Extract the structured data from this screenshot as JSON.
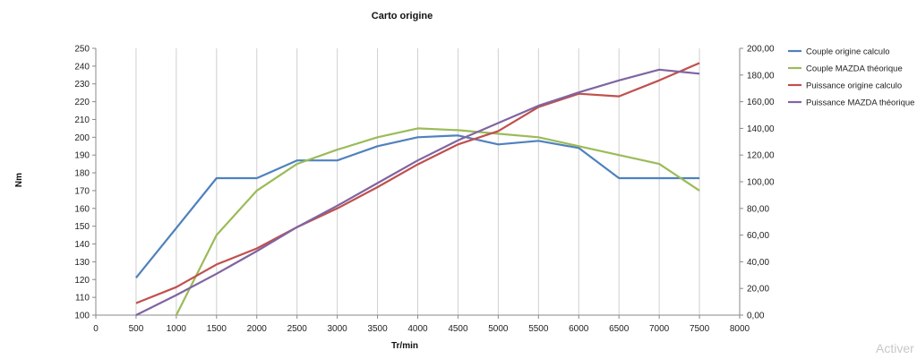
{
  "watermark": "Activer",
  "chart_data": {
    "type": "line",
    "title": "Carto origine",
    "xlabel": "Tr/min",
    "ylabel": "Nm",
    "xlim": [
      0,
      8000
    ],
    "xticks": [
      "0",
      "500",
      "1000",
      "1500",
      "2000",
      "2500",
      "3000",
      "3500",
      "4000",
      "4500",
      "5000",
      "5500",
      "6000",
      "6500",
      "7000",
      "7500",
      "8000"
    ],
    "ylim": [
      100,
      250
    ],
    "yticks": [
      "100",
      "110",
      "120",
      "130",
      "140",
      "150",
      "160",
      "170",
      "180",
      "190",
      "200",
      "210",
      "220",
      "230",
      "240",
      "250"
    ],
    "y2lim": [
      0,
      200
    ],
    "y2ticks": [
      "0,00",
      "20,00",
      "40,00",
      "60,00",
      "80,00",
      "100,00",
      "120,00",
      "140,00",
      "160,00",
      "180,00",
      "200,00"
    ],
    "grid": "vertical",
    "legend_position": "right",
    "series": [
      {
        "name": "Couple origine calculo",
        "axis": "left",
        "color": "#4f81bd",
        "x": [
          500,
          1000,
          1500,
          2000,
          2500,
          3000,
          3500,
          4000,
          4500,
          5000,
          5500,
          6000,
          6500,
          7000,
          7500
        ],
        "values": [
          121,
          149,
          177,
          177,
          187,
          187,
          195,
          200,
          201,
          196,
          198,
          194,
          177,
          177,
          177
        ]
      },
      {
        "name": "Couple MAZDA théorique",
        "axis": "left",
        "color": "#9bbb59",
        "x": [
          1000,
          1500,
          2000,
          2500,
          3000,
          3500,
          4000,
          4500,
          5000,
          5500,
          6000,
          6500,
          7000,
          7500
        ],
        "values": [
          100,
          145,
          170,
          185,
          193,
          200,
          205,
          204,
          202,
          200,
          195,
          190,
          185,
          170
        ]
      },
      {
        "name": "Puissance origine calculo",
        "axis": "right",
        "color": "#c0504d",
        "x": [
          500,
          1000,
          1500,
          2000,
          2500,
          3000,
          3500,
          4000,
          4500,
          5000,
          5500,
          6000,
          6500,
          7000,
          7500
        ],
        "values": [
          9,
          21,
          38,
          50,
          66,
          80,
          96,
          113,
          128,
          138,
          156,
          166,
          164,
          176,
          189
        ]
      },
      {
        "name": "Puissance MAZDA théorique",
        "axis": "right",
        "color": "#8064a2",
        "x": [
          500,
          1000,
          1500,
          2000,
          2500,
          3000,
          3500,
          4000,
          4500,
          5000,
          5500,
          6000,
          6500,
          7000,
          7500
        ],
        "values": [
          0,
          15,
          31,
          48,
          66,
          82,
          99,
          116,
          131,
          144,
          157,
          167,
          176,
          184,
          181
        ]
      }
    ]
  }
}
